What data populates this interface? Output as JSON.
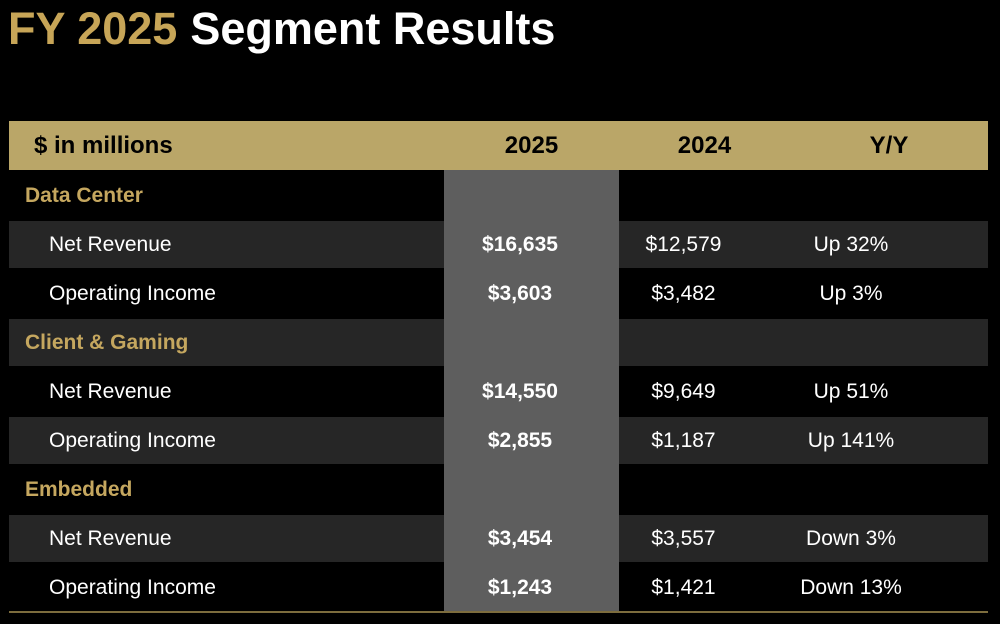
{
  "title": {
    "highlight": "FY 2025",
    "text": "Segment Results"
  },
  "colors": {
    "background": "#000000",
    "gold_text": "#C5A75F",
    "title_gold": "#C7A557",
    "header_bg": "#BAA668",
    "header_text": "#000000",
    "column_highlight": "#5E5E5E",
    "row_alt_bg": "#262626",
    "body_text": "#FFFFFF",
    "bottom_accent_line": "#7D6D3E"
  },
  "table": {
    "unit_header": "$ in millions",
    "col_2025": "2025",
    "col_2024": "2024",
    "col_yy": "Y/Y",
    "sections": [
      {
        "name": "Data Center",
        "rows": [
          {
            "label": "Net Revenue",
            "v2025": "$16,635",
            "v2024": "$12,579",
            "yy": "Up 32%"
          },
          {
            "label": "Operating Income",
            "v2025": "$3,603",
            "v2024": "$3,482",
            "yy": "Up 3%"
          }
        ]
      },
      {
        "name": "Client & Gaming",
        "rows": [
          {
            "label": "Net Revenue",
            "v2025": "$14,550",
            "v2024": "$9,649",
            "yy": "Up 51%"
          },
          {
            "label": "Operating Income",
            "v2025": "$2,855",
            "v2024": "$1,187",
            "yy": "Up 141%"
          }
        ]
      },
      {
        "name": "Embedded",
        "rows": [
          {
            "label": "Net Revenue",
            "v2025": "$3,454",
            "v2024": "$3,557",
            "yy": "Down 3%"
          },
          {
            "label": "Operating Income",
            "v2025": "$1,243",
            "v2024": "$1,421",
            "yy": "Down 13%"
          }
        ]
      }
    ]
  }
}
